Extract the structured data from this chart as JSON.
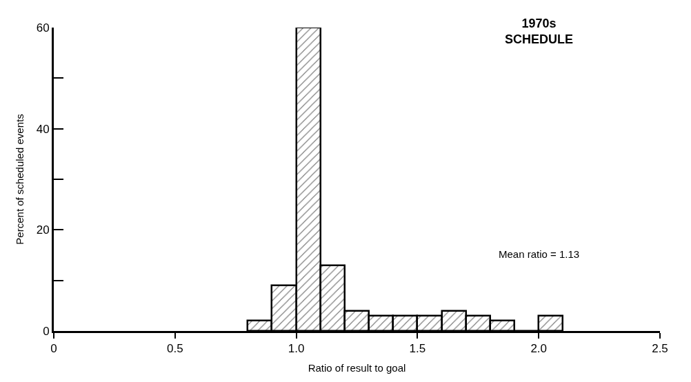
{
  "chart_data": {
    "type": "histogram",
    "title": "1970s\nSCHEDULE",
    "xlabel": "Ratio of result to goal",
    "ylabel": "Percent of scheduled events",
    "bins": [
      0.8,
      0.9,
      1.0,
      1.1,
      1.2,
      1.3,
      1.4,
      1.5,
      1.6,
      1.7,
      1.8,
      1.9,
      2.0,
      2.1
    ],
    "values": [
      2,
      9,
      60,
      13,
      4,
      3,
      3,
      3,
      4,
      3,
      2,
      0,
      3
    ],
    "color": "#000000",
    "xlim": [
      0,
      2.5
    ],
    "xticks": [
      0,
      {
        "value": 0.5,
        "label": "0.5"
      },
      {
        "value": 1.0,
        "label": "1.0"
      },
      {
        "value": 1.5,
        "label": "1.5"
      },
      {
        "value": 2.0,
        "label": "2.0"
      },
      {
        "value": 2.5,
        "label": "2.5"
      }
    ],
    "ylim": [
      0,
      60
    ],
    "yticks": [
      0,
      {
        "value": 10,
        "label": null
      },
      20,
      {
        "value": 30,
        "label": null
      },
      40,
      {
        "value": 50,
        "label": null
      },
      60
    ],
    "annotations": [
      "Mean ratio = 1.13"
    ]
  }
}
